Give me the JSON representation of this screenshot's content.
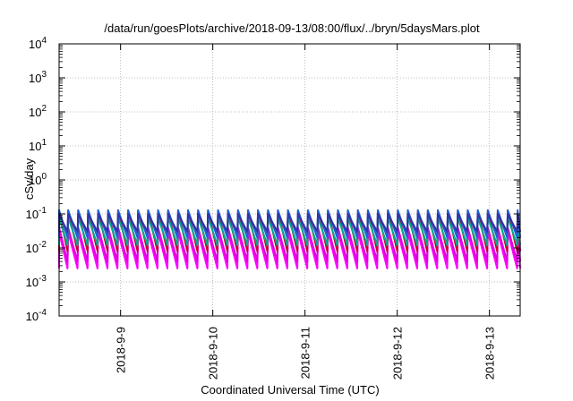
{
  "chart_data": {
    "type": "line",
    "title": "/data/run/goesPlots/archive/2018-09-13/08:00/flux/../bryn/5daysMars.plot",
    "xlabel": "Coordinated Universal Time (UTC)",
    "ylabel": "cSv/day",
    "yscale": "log",
    "ylim": [
      0.0001,
      10000
    ],
    "xlim": [
      "2018-09-08 08:00",
      "2018-09-13 08:00"
    ],
    "x_ticks": [
      {
        "label": "2018-9-9",
        "value": "2018-09-09 00:00"
      },
      {
        "label": "2018-9-10",
        "value": "2018-09-10 00:00"
      },
      {
        "label": "2018-9-11",
        "value": "2018-09-11 00:00"
      },
      {
        "label": "2018-9-12",
        "value": "2018-09-12 00:00"
      },
      {
        "label": "2018-9-13",
        "value": "2018-09-13 00:00"
      }
    ],
    "y_ticks": [
      {
        "value": 0.0001,
        "base": "10",
        "exp": "-4"
      },
      {
        "value": 0.001,
        "base": "10",
        "exp": "-3"
      },
      {
        "value": 0.01,
        "base": "10",
        "exp": "-2"
      },
      {
        "value": 0.1,
        "base": "10",
        "exp": "-1"
      },
      {
        "value": 1,
        "base": "10",
        "exp": "0"
      },
      {
        "value": 10,
        "base": "10",
        "exp": "1"
      },
      {
        "value": 100,
        "base": "10",
        "exp": "2"
      },
      {
        "value": 1000,
        "base": "10",
        "exp": "3"
      },
      {
        "value": 10000,
        "base": "10",
        "exp": "4"
      }
    ],
    "grid": true,
    "legend": "none",
    "sawtooth_period_hours": 2.6,
    "series": [
      {
        "color": "#ff00ff",
        "peak": 0.03,
        "trough": 0.0025
      },
      {
        "color": "#dd00dd",
        "peak": 0.04,
        "trough": 0.004
      },
      {
        "color": "#cc0033",
        "peak": 0.12,
        "trough": 0.008
      },
      {
        "color": "#00aa88",
        "peak": 0.08,
        "trough": 0.012
      },
      {
        "color": "#1f5fd6",
        "peak": 0.13,
        "trough": 0.02
      },
      {
        "color": "#3333aa",
        "peak": 0.1,
        "trough": 0.03
      }
    ]
  }
}
